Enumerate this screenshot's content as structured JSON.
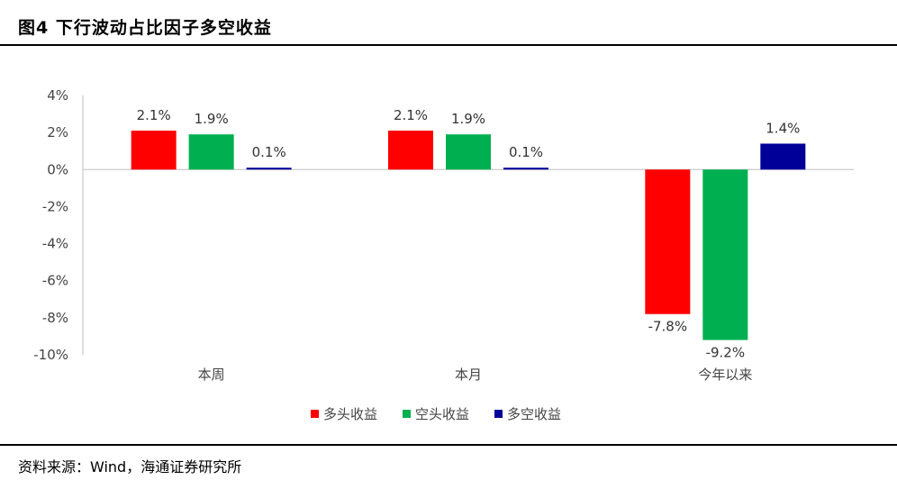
{
  "figure": {
    "title": "图4  下行波动占比因子多空收益",
    "source": "资料来源：Wind，海通证券研究所"
  },
  "chart_data": {
    "type": "bar",
    "categories": [
      "本周",
      "本月",
      "今年以来"
    ],
    "series": [
      {
        "name": "多头收益",
        "color": "#FF0000",
        "values": [
          2.1,
          2.1,
          -7.8
        ],
        "labels": [
          "2.1%",
          "2.1%",
          "-7.8%"
        ]
      },
      {
        "name": "空头收益",
        "color": "#00B050",
        "values": [
          1.9,
          1.9,
          -9.2
        ],
        "labels": [
          "1.9%",
          "1.9%",
          "-9.2%"
        ]
      },
      {
        "name": "多空收益",
        "color": "#000099",
        "values": [
          0.1,
          0.1,
          1.4
        ],
        "labels": [
          "0.1%",
          "0.1%",
          "1.4%"
        ]
      }
    ],
    "yticks": [
      4,
      2,
      0,
      -2,
      -4,
      -6,
      -8,
      -10
    ],
    "ytick_labels": [
      "4%",
      "2%",
      "0%",
      "-2%",
      "-4%",
      "-6%",
      "-8%",
      "-10%"
    ],
    "ylim": [
      -10,
      4
    ],
    "grid": false,
    "legend_position": "bottom-center"
  }
}
